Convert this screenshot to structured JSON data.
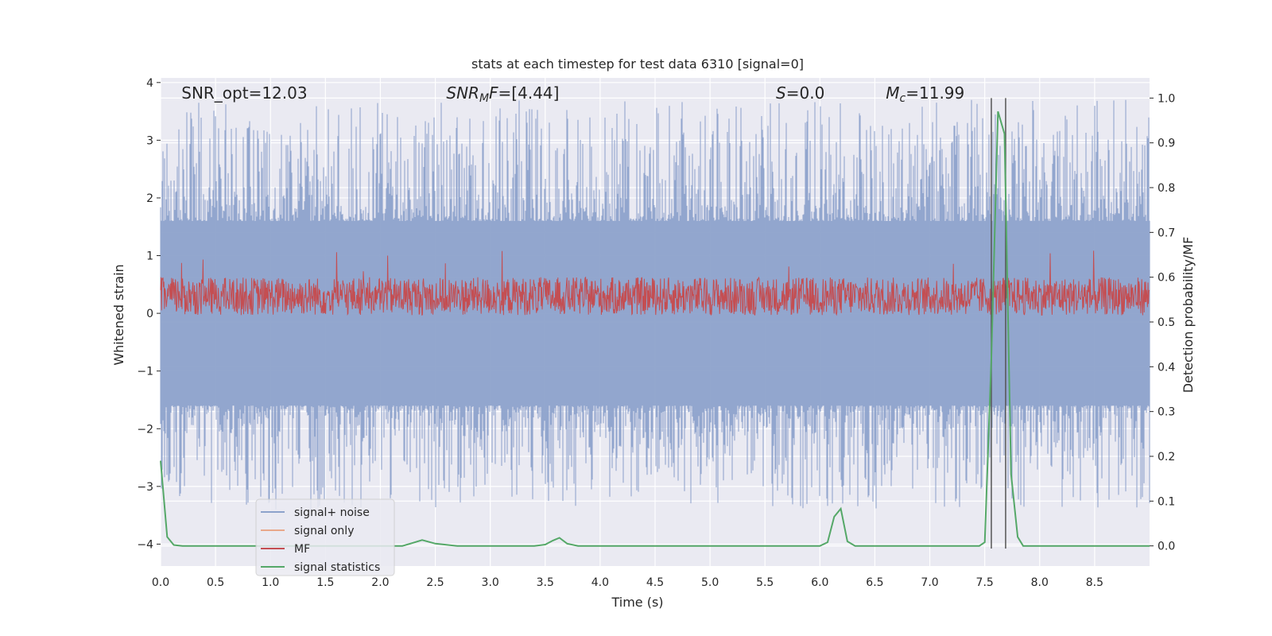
{
  "chart_data": {
    "type": "line",
    "title": "stats at each timestep for test data 6310 [signal=0]",
    "xlabel": "Time (s)",
    "ylabel_left": "Whitened strain",
    "ylabel_right": "Detection probability/MF",
    "xlim": [
      0,
      9
    ],
    "ylim_left": [
      -4.38,
      4.08
    ],
    "ylim_right": [
      -0.045,
      1.045
    ],
    "x_ticks": [
      "0.0",
      "0.5",
      "1.0",
      "1.5",
      "2.0",
      "2.5",
      "3.0",
      "3.5",
      "4.0",
      "4.5",
      "5.0",
      "5.5",
      "6.0",
      "6.5",
      "7.0",
      "7.5",
      "8.0",
      "8.5"
    ],
    "x_tick_values": [
      0,
      0.5,
      1,
      1.5,
      2,
      2.5,
      3,
      3.5,
      4,
      4.5,
      5,
      5.5,
      6,
      6.5,
      7,
      7.5,
      8,
      8.5
    ],
    "y_left_ticks": [
      "4",
      "3",
      "2",
      "1",
      "0",
      "−1",
      "−2",
      "−3",
      "−4"
    ],
    "y_left_tick_values": [
      4,
      3,
      2,
      1,
      0,
      -1,
      -2,
      -3,
      -4
    ],
    "y_right_ticks": [
      "1.0",
      "0.9",
      "0.8",
      "0.7",
      "0.6",
      "0.5",
      "0.4",
      "0.3",
      "0.2",
      "0.1",
      "0.0"
    ],
    "y_right_tick_values": [
      1.0,
      0.9,
      0.8,
      0.7,
      0.6,
      0.5,
      0.4,
      0.3,
      0.2,
      0.1,
      0.0
    ],
    "grid": true,
    "legend_position": "lower-left",
    "annotations": [
      {
        "text": "SNR_opt=12.03",
        "x_data": 0.19
      },
      {
        "text": "SNR_MF=[4.44]",
        "x_data": 2.6
      },
      {
        "text": "S=0.0",
        "x_data": 5.6
      },
      {
        "text": "M_c=11.99",
        "x_data": 6.6
      }
    ],
    "series": [
      {
        "name": "signal+ noise",
        "color": "#8da2cb",
        "axis": "left",
        "description_range": [
          -3.4,
          3.7
        ]
      },
      {
        "name": "signal only",
        "color": "#e8a88a",
        "axis": "left",
        "values": []
      },
      {
        "name": "MF",
        "color": "#c44e52",
        "axis": "right",
        "description_range": [
          0.52,
          0.63
        ]
      },
      {
        "name": "signal statistics",
        "color": "#55a868",
        "axis": "right",
        "x": [
          0.0,
          0.06,
          0.12,
          0.2,
          0.4,
          1.0,
          2.0,
          2.2,
          2.3,
          2.38,
          2.5,
          2.7,
          3.0,
          3.4,
          3.5,
          3.57,
          3.63,
          3.7,
          3.8,
          4.0,
          5.0,
          6.0,
          6.07,
          6.13,
          6.19,
          6.25,
          6.32,
          6.5,
          7.0,
          7.45,
          7.5,
          7.56,
          7.62,
          7.68,
          7.74,
          7.8,
          7.85,
          8.0,
          9.0
        ],
        "y": [
          0.19,
          0.02,
          0.002,
          0.0,
          0.0,
          0.0,
          0.0,
          0.0,
          0.007,
          0.013,
          0.005,
          0.0,
          0.0,
          0.0,
          0.003,
          0.012,
          0.018,
          0.005,
          0.0,
          0.0,
          0.0,
          0.0,
          0.008,
          0.065,
          0.083,
          0.01,
          0.0,
          0.0,
          0.0,
          0.0,
          0.008,
          0.42,
          0.97,
          0.92,
          0.16,
          0.02,
          0.0,
          0.0,
          0.0
        ]
      }
    ],
    "vertical_lines_x": [
      7.56,
      7.69
    ],
    "colors": {
      "plot_background": "#eaeaf2",
      "grid": "#ffffff",
      "vline": "#555555"
    }
  }
}
